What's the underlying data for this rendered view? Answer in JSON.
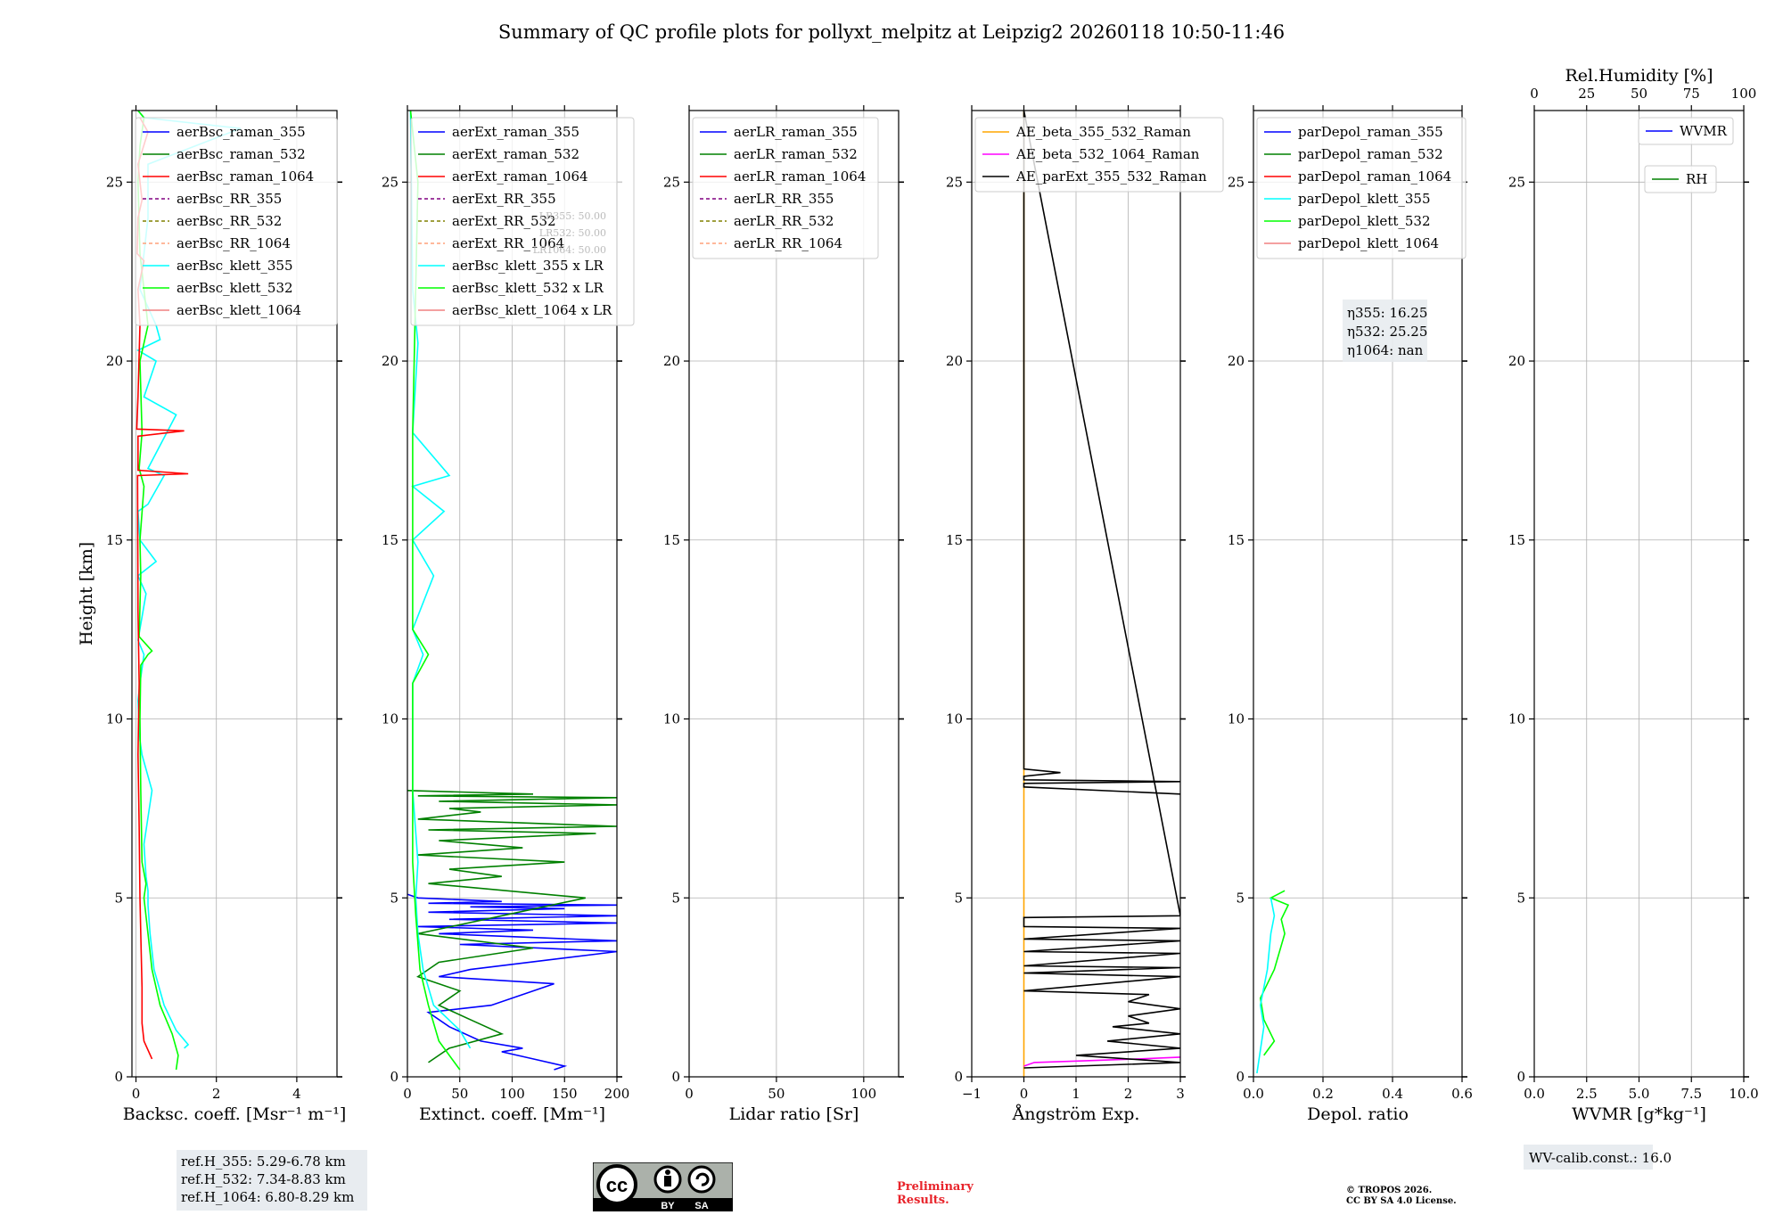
{
  "title": "Summary of QC profile plots for pollyxt_melpitz at Leipzig2 20260118 10:50-11:46",
  "colors": {
    "blue": "#0000ff",
    "green": "#008000",
    "red": "#ff0000",
    "purple": "#800080",
    "olive": "#808000",
    "salmon": "#ffa07a",
    "cyan": "#00ffff",
    "lime": "#00ff00",
    "lightcoral": "#f08080",
    "orange": "#ffa500",
    "magenta": "#ff00ff",
    "black": "#000000"
  },
  "chart_data": [
    {
      "type": "line",
      "name": "backscatter",
      "xlabel": "Backsc. coeff. [Msr$^{-1}$ m$^{-1}$]",
      "xlabel_text": "Backsc. coeff. [Msr⁻¹ m⁻¹]",
      "ylabel": "Height [km]",
      "xlim": [
        -0.1,
        5
      ],
      "ylim": [
        0,
        27
      ],
      "xticks": [
        0,
        2,
        4
      ],
      "yticks": [
        0,
        5,
        10,
        15,
        20,
        25
      ],
      "legend": [
        "aerBsc_raman_355",
        "aerBsc_raman_532",
        "aerBsc_raman_1064",
        "aerBsc_RR_355",
        "aerBsc_RR_532",
        "aerBsc_RR_1064",
        "aerBsc_klett_355",
        "aerBsc_klett_532",
        "aerBsc_klett_1064"
      ],
      "legend_colors": [
        "blue",
        "green",
        "red",
        "purple",
        "olive",
        "salmon",
        "cyan",
        "lime",
        "lightcoral"
      ],
      "legend_dashed": [
        false,
        false,
        false,
        true,
        true,
        true,
        false,
        false,
        false
      ],
      "series": [
        {
          "name": "aerBsc_klett_355",
          "color": "cyan",
          "x": [
            1.2,
            1.3,
            1.0,
            0.7,
            0.45,
            0.35,
            0.3,
            0.3,
            0.25,
            0.2,
            0.4,
            0.15,
            0.1,
            0.05,
            0.1,
            0.2,
            0.05,
            0.25,
            0.05,
            0.5,
            0.1,
            0.05,
            0.3,
            0.7,
            0.3,
            1.0,
            0.2,
            0.5,
            0.05,
            0.6,
            0.5,
            0.1,
            0.3,
            0.3,
            2.6,
            0.2,
            0.05
          ],
          "y": [
            0.8,
            0.9,
            1.3,
            2.0,
            3.0,
            4.0,
            4.8,
            5.2,
            5.6,
            6.5,
            8.0,
            9.0,
            9.4,
            10.5,
            11.0,
            11.8,
            12.2,
            13.5,
            14.0,
            14.4,
            15.0,
            15.8,
            16.0,
            16.8,
            17.0,
            18.5,
            19.0,
            20.0,
            20.3,
            20.6,
            21.0,
            22.0,
            24.0,
            25.5,
            26.5,
            26.8,
            27
          ]
        },
        {
          "name": "aerBsc_klett_532",
          "color": "lime",
          "x": [
            1.0,
            1.05,
            0.9,
            0.6,
            0.4,
            0.3,
            0.2,
            0.25,
            0.15,
            0.12,
            0.1,
            0.12,
            0.3,
            0.4,
            0.08,
            0.12,
            0.1,
            0.2,
            0.08,
            0.15,
            0.1,
            0.3,
            0.1,
            0.05,
            0.1,
            0.2,
            0.05
          ],
          "y": [
            0.2,
            0.6,
            1.2,
            2.0,
            3.0,
            4.0,
            5.0,
            5.4,
            6.0,
            8.0,
            10.0,
            11.5,
            11.8,
            11.9,
            12.3,
            14.0,
            15.0,
            16.5,
            17.0,
            18.0,
            20.0,
            21.0,
            23.0,
            25.0,
            26.0,
            26.8,
            27
          ]
        },
        {
          "name": "aerBsc_raman_1064",
          "color": "red",
          "x": [
            0.4,
            0.2,
            0.15,
            0.15,
            0.12,
            0.1,
            0.08,
            0.05,
            0.08,
            0.05,
            0.04,
            1.3,
            0.05,
            0.05,
            1.2,
            0.02,
            0.05,
            0.1,
            0.05,
            0.2,
            0.03,
            0.05,
            0.15,
            0.05,
            0.3,
            0.1
          ],
          "y": [
            0.5,
            1.0,
            1.5,
            2.5,
            4.0,
            5.0,
            7.0,
            9.0,
            11.0,
            13.0,
            16.8,
            16.85,
            16.95,
            17.9,
            18.05,
            18.1,
            19.0,
            21.0,
            22.0,
            22.8,
            23.0,
            24.0,
            24.5,
            25.5,
            26.4,
            26.8
          ]
        }
      ]
    },
    {
      "type": "line",
      "name": "extinction",
      "xlabel": "Extinct. coeff. [Mm$^{-1}$]",
      "xlabel_text": "Extinct. coeff. [Mm⁻¹]",
      "xlim": [
        0,
        200
      ],
      "ylim": [
        0,
        27
      ],
      "xticks": [
        0,
        50,
        100,
        150,
        200
      ],
      "yticks": [
        0,
        5,
        10,
        15,
        20,
        25
      ],
      "legend": [
        "aerExt_raman_355",
        "aerExt_raman_532",
        "aerExt_raman_1064",
        "aerExt_RR_355",
        "aerExt_RR_532",
        "aerExt_RR_1064",
        "aerBsc_klett_355 x LR",
        "aerBsc_klett_532 x LR",
        "aerBsc_klett_1064 x LR"
      ],
      "legend_colors": [
        "blue",
        "green",
        "red",
        "purple",
        "olive",
        "salmon",
        "cyan",
        "lime",
        "lightcoral"
      ],
      "legend_dashed": [
        false,
        false,
        false,
        true,
        true,
        true,
        false,
        false,
        false
      ],
      "annotation": [
        "LR355: 50.00",
        "LR532: 50.00",
        "LR1064: 50.00"
      ],
      "series": [
        {
          "name": "aerExt_raman_355",
          "color": "blue",
          "x": [
            140,
            150,
            120,
            90,
            110,
            70,
            40,
            20,
            80,
            140,
            30,
            60,
            200,
            50,
            200,
            30,
            120,
            10,
            200,
            40,
            200,
            20,
            150,
            60,
            200,
            20,
            90,
            10,
            0
          ],
          "y": [
            0.2,
            0.3,
            0.5,
            0.7,
            0.8,
            1.0,
            1.4,
            1.8,
            2.0,
            2.6,
            2.8,
            3.0,
            3.5,
            3.7,
            3.8,
            4.0,
            4.1,
            4.2,
            4.3,
            4.4,
            4.5,
            4.6,
            4.7,
            4.75,
            4.8,
            4.85,
            4.9,
            5.0,
            5.1
          ]
        },
        {
          "name": "aerExt_raman_532",
          "color": "green",
          "x": [
            20,
            40,
            90,
            60,
            30,
            50,
            10,
            30,
            120,
            10,
            170,
            20,
            90,
            40,
            150,
            10,
            110,
            30,
            180,
            20,
            200,
            10,
            70,
            40,
            200,
            30,
            200,
            10,
            120,
            0
          ],
          "y": [
            0.4,
            0.8,
            1.2,
            1.6,
            2.0,
            2.4,
            2.8,
            3.2,
            3.6,
            4.0,
            5.0,
            5.4,
            5.6,
            5.8,
            6.0,
            6.2,
            6.4,
            6.6,
            6.8,
            6.9,
            7.0,
            7.2,
            7.4,
            7.5,
            7.6,
            7.7,
            7.8,
            7.85,
            7.9,
            8.0
          ]
        },
        {
          "name": "aerBsc_klett_355 x LR",
          "color": "cyan",
          "x": [
            60,
            50,
            25,
            15,
            10,
            8,
            10,
            5,
            5,
            15,
            5,
            25,
            5,
            35,
            5,
            40,
            5,
            10,
            5,
            3
          ],
          "y": [
            0.8,
            1.3,
            2.0,
            3.0,
            4.0,
            5.0,
            6.0,
            8.0,
            11.0,
            11.8,
            12.5,
            14.0,
            15.0,
            15.8,
            16.5,
            16.8,
            18.0,
            20.5,
            22.0,
            27.0
          ]
        },
        {
          "name": "aerBsc_klett_532 x LR",
          "color": "lime",
          "x": [
            50,
            30,
            20,
            12,
            8,
            5,
            5,
            20,
            5,
            5,
            10,
            3
          ],
          "y": [
            0.2,
            1.0,
            2.0,
            3.0,
            4.5,
            6.0,
            11.0,
            11.8,
            12.5,
            18.0,
            25.0,
            27.0
          ]
        }
      ]
    },
    {
      "type": "line",
      "name": "lidar_ratio",
      "xlabel": "Lidar ratio [Sr]",
      "xlim": [
        0,
        120
      ],
      "ylim": [
        0,
        27
      ],
      "xticks": [
        0,
        50,
        100
      ],
      "yticks": [
        0,
        5,
        10,
        15,
        20,
        25
      ],
      "legend": [
        "aerLR_raman_355",
        "aerLR_raman_532",
        "aerLR_raman_1064",
        "aerLR_RR_355",
        "aerLR_RR_532",
        "aerLR_RR_1064"
      ],
      "legend_colors": [
        "blue",
        "green",
        "red",
        "purple",
        "olive",
        "salmon"
      ],
      "legend_dashed": [
        false,
        false,
        false,
        true,
        true,
        true
      ],
      "series": []
    },
    {
      "type": "line",
      "name": "angstrom",
      "xlabel": "Ångström Exp.",
      "xlim": [
        -1,
        3
      ],
      "ylim": [
        0,
        27
      ],
      "xticks": [
        -1,
        0,
        1,
        2,
        3
      ],
      "yticks": [
        0,
        5,
        10,
        15,
        20,
        25
      ],
      "legend": [
        "AE_beta_355_532_Raman",
        "AE_beta_532_1064_Raman",
        "AE_parExt_355_532_Raman"
      ],
      "legend_colors": [
        "orange",
        "magenta",
        "black"
      ],
      "legend_dashed": [
        false,
        false,
        false
      ],
      "series": [
        {
          "name": "AE_beta_355_532_Raman",
          "color": "orange",
          "x": [
            0,
            0
          ],
          "y": [
            0,
            27
          ]
        },
        {
          "name": "AE_beta_532_1064_Raman",
          "color": "magenta",
          "x": [
            0,
            0.2,
            1.2,
            2.2,
            3.0
          ],
          "y": [
            0.3,
            0.4,
            0.45,
            0.5,
            0.55
          ]
        },
        {
          "name": "AE_parExt_355_532_Raman",
          "color": "black",
          "x": [
            3,
            0,
            0,
            3,
            0,
            0,
            0.7,
            0,
            0,
            3,
            0,
            0,
            3,
            0,
            3,
            0,
            3,
            0,
            3,
            0,
            3,
            0,
            2.4,
            2.0,
            3.0,
            2.0,
            2.4,
            1.7,
            3.0,
            1.6,
            3.0,
            1.0,
            3.0,
            0
          ],
          "y": [
            7.9,
            8.1,
            8.2,
            8.25,
            8.3,
            8.4,
            8.5,
            8.6,
            27,
            4.5,
            4.45,
            4.2,
            4.15,
            3.85,
            3.8,
            3.5,
            3.45,
            3.1,
            3.05,
            2.9,
            2.8,
            2.4,
            2.3,
            2.1,
            1.9,
            1.7,
            1.5,
            1.4,
            1.2,
            1.0,
            0.8,
            0.6,
            0.4,
            0.25
          ]
        }
      ]
    },
    {
      "type": "line",
      "name": "depolarization",
      "xlabel": "Depol. ratio",
      "xlim": [
        0,
        0.6
      ],
      "ylim": [
        0,
        27
      ],
      "xticks": [
        0,
        0.2,
        0.4,
        0.6
      ],
      "xtick_labels": [
        "0.0",
        "0.2",
        "0.4",
        "0.6"
      ],
      "yticks": [
        0,
        5,
        10,
        15,
        20,
        25
      ],
      "legend": [
        "parDepol_raman_355",
        "parDepol_raman_532",
        "parDepol_raman_1064",
        "parDepol_klett_355",
        "parDepol_klett_532",
        "parDepol_klett_1064"
      ],
      "legend_colors": [
        "blue",
        "green",
        "red",
        "cyan",
        "lime",
        "lightcoral"
      ],
      "legend_dashed": [
        false,
        false,
        false,
        false,
        false,
        false
      ],
      "annotation": [
        "η355: 16.25",
        "η532: 25.25",
        "η1064: nan"
      ],
      "series": [
        {
          "name": "parDepol_klett_532",
          "color": "lime",
          "x": [
            0.03,
            0.06,
            0.03,
            0.02,
            0.06,
            0.09,
            0.08,
            0.1,
            0.05,
            0.09
          ],
          "y": [
            0.6,
            1.0,
            1.6,
            2.2,
            3.0,
            4.0,
            4.4,
            4.8,
            5.0,
            5.2
          ]
        },
        {
          "name": "parDepol_klett_355",
          "color": "cyan",
          "x": [
            0.01,
            0.03,
            0.02,
            0.04,
            0.05,
            0.06,
            0.05
          ],
          "y": [
            0.1,
            1.4,
            2.0,
            3.0,
            4.0,
            4.5,
            5.0
          ]
        }
      ]
    },
    {
      "type": "line",
      "name": "water_vapor",
      "xlabel": "WVMR [g*kg⁻¹]",
      "top_xlabel": "Rel.Humidity [%]",
      "xlim": [
        0,
        10
      ],
      "ylim": [
        0,
        27
      ],
      "xticks": [
        0,
        2.5,
        5,
        7.5,
        10
      ],
      "xtick_labels": [
        "0.0",
        "2.5",
        "5.0",
        "7.5",
        "10.0"
      ],
      "top_xlim": [
        0,
        100
      ],
      "top_xticks": [
        0,
        25,
        50,
        75,
        100
      ],
      "yticks": [
        0,
        5,
        10,
        15,
        20,
        25
      ],
      "legend": [
        "WVMR",
        "RH"
      ],
      "legend_colors": [
        "blue",
        "green"
      ],
      "legend_dashed": [
        false,
        false
      ],
      "series": []
    }
  ],
  "annotations": {
    "ref_heights": [
      "ref.H_355: 5.29-6.78 km",
      "ref.H_532: 7.34-8.83 km",
      "ref.H_1064: 6.80-8.29 km"
    ],
    "wv_calib": "WV-calib.const.: 16.0",
    "preliminary": [
      "Preliminary",
      "Results."
    ],
    "copyright": [
      "© TROPOS 2026.",
      "CC BY SA 4.0 License."
    ],
    "license_badge": {
      "cc": "cc",
      "by": "BY",
      "sa": "SA"
    }
  }
}
